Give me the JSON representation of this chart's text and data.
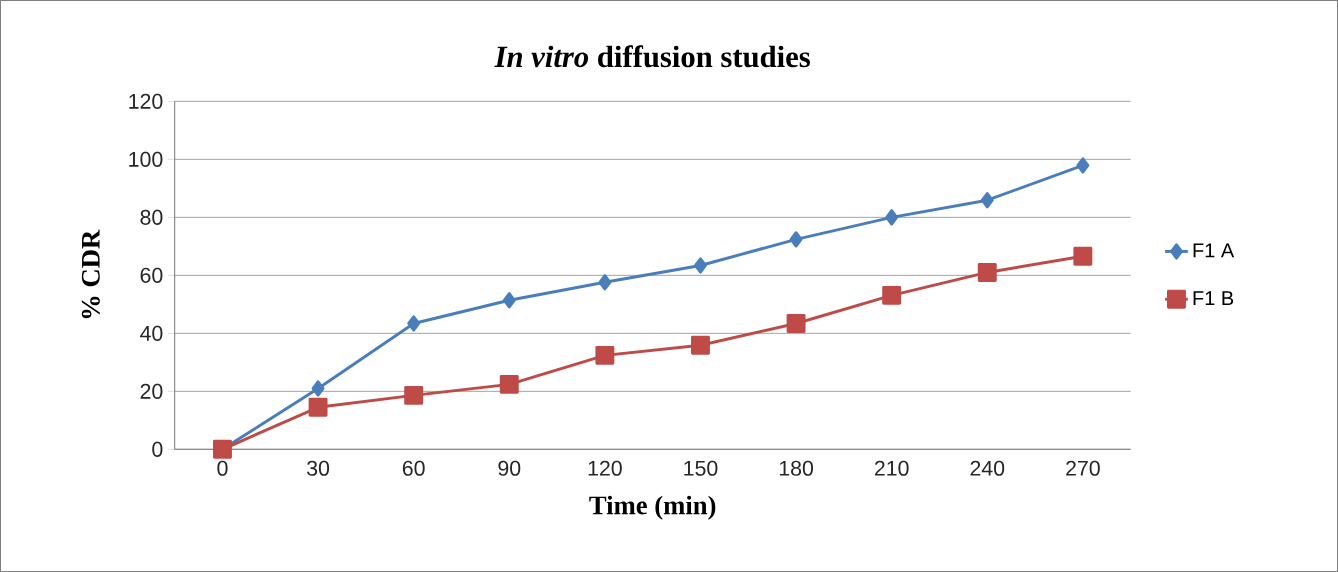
{
  "chart_data": {
    "type": "line",
    "title": "*In vitro* diffusion studies",
    "xlabel": "Time (min)",
    "ylabel": "% CDR",
    "categories": [
      "0",
      "30",
      "60",
      "90",
      "120",
      "150",
      "180",
      "210",
      "240",
      "270"
    ],
    "series": [
      {
        "name": "F1 A",
        "color": "#4a7ebb",
        "marker": "diamond",
        "values": [
          0,
          21,
          43.4,
          51.4,
          57.6,
          63.4,
          72.4,
          80,
          85.9,
          97.9
        ]
      },
      {
        "name": "F1 B",
        "color": "#be4b48",
        "marker": "square",
        "values": [
          0,
          14.5,
          18.6,
          22.4,
          32.4,
          35.9,
          43.4,
          53.1,
          61,
          66.6
        ]
      }
    ],
    "ylim": [
      0,
      120
    ],
    "yticks": [
      0,
      20,
      40,
      60,
      80,
      100,
      120
    ],
    "grid": "y",
    "legend": "right",
    "line_style": "solid"
  }
}
